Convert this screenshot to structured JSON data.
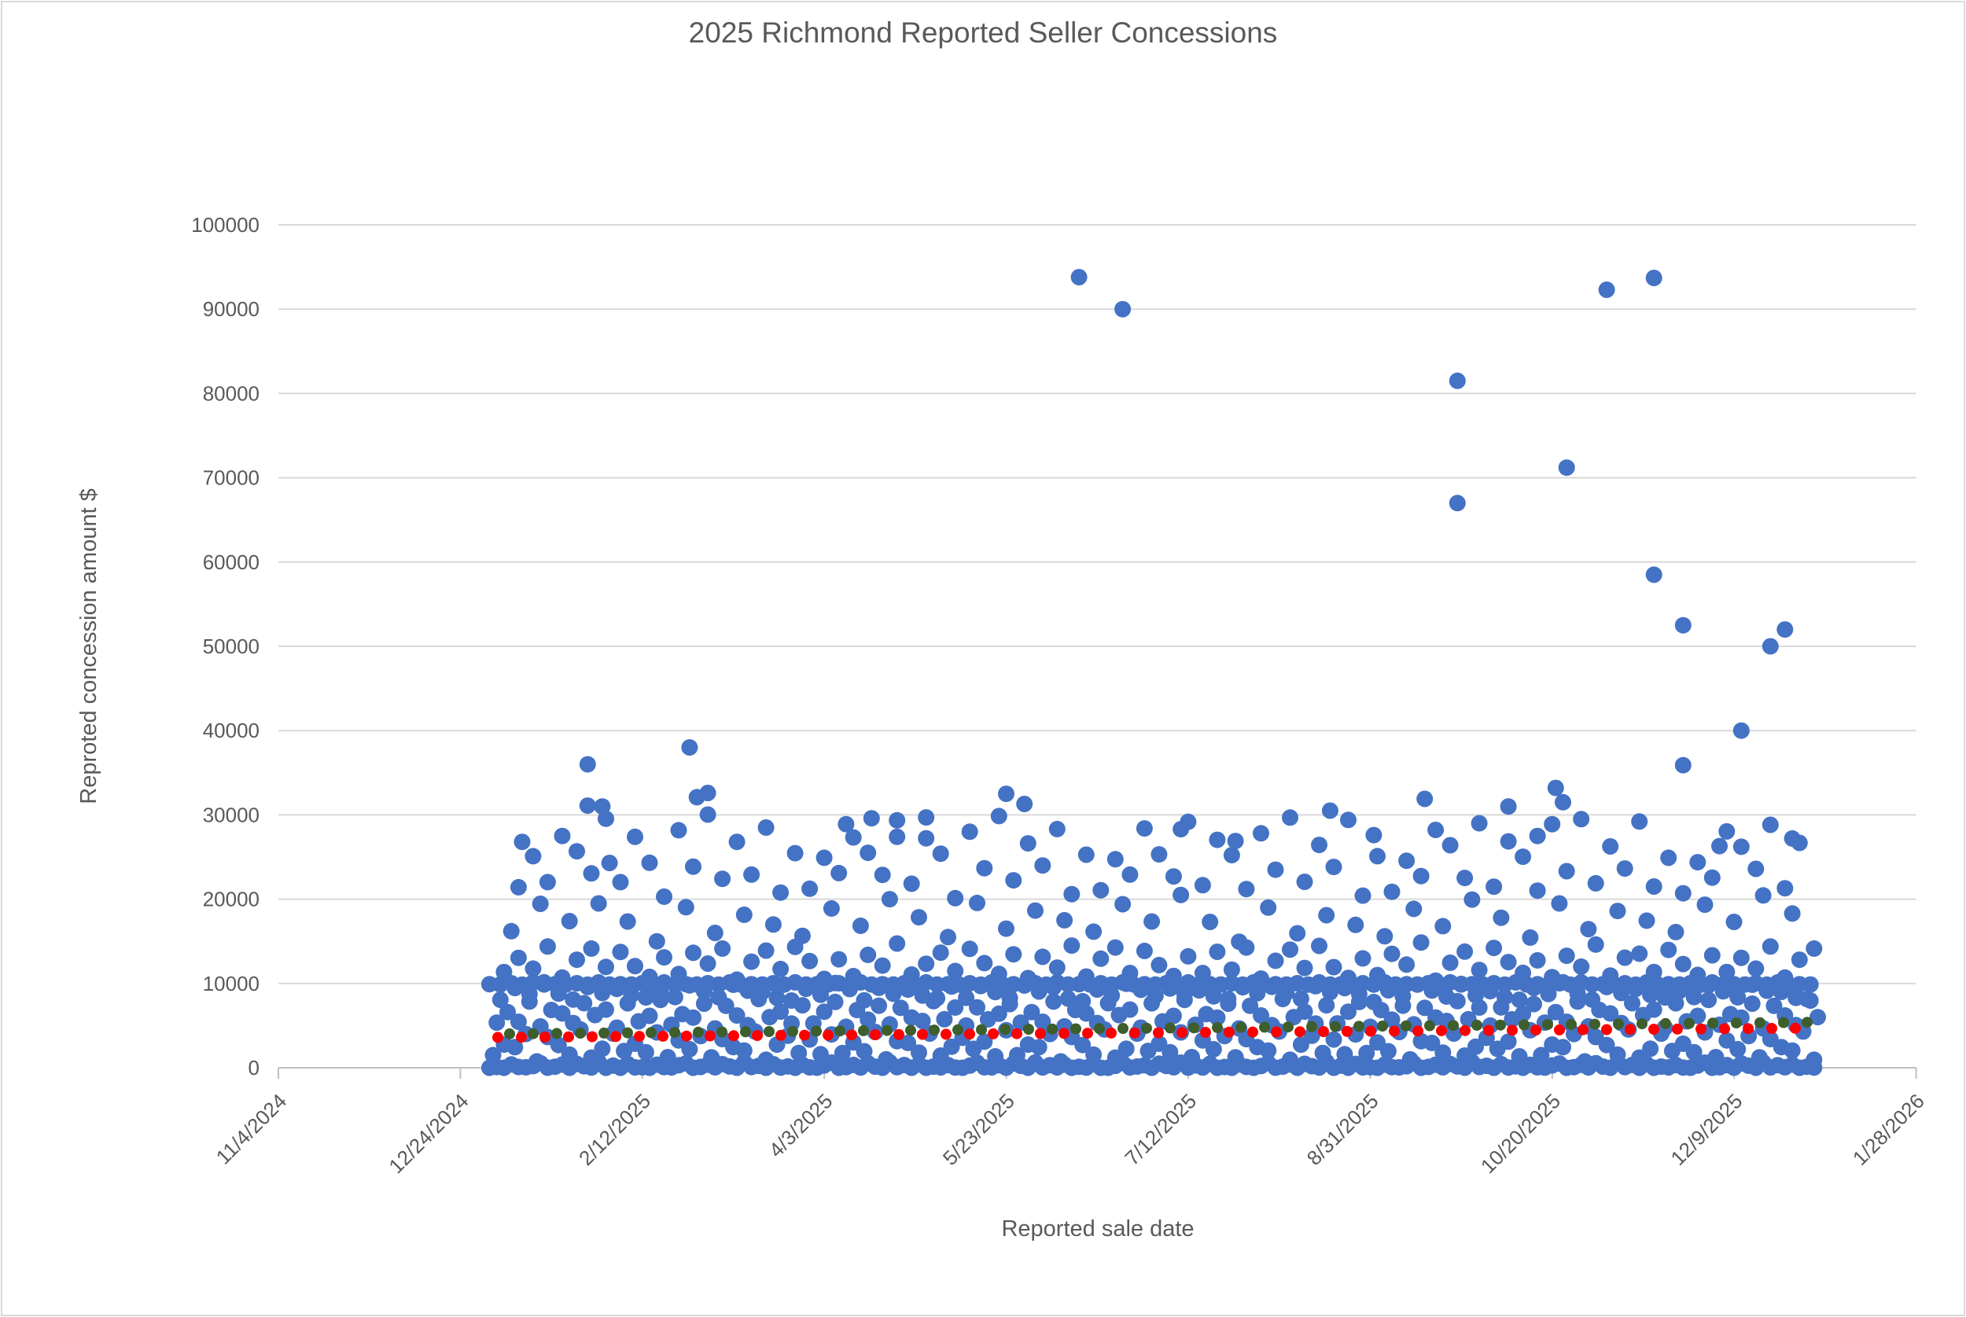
{
  "chart_data": {
    "type": "scatter",
    "title": "2025 Richmond Reported Seller Concessions",
    "xlabel": "Reported sale date",
    "ylabel": "Reproted concession amount $",
    "x_tick_labels": [
      "11/4/2024",
      "12/24/2024",
      "2/12/2025",
      "4/3/2025",
      "5/23/2025",
      "7/12/2025",
      "8/31/2025",
      "10/20/2025",
      "12/9/2025",
      "1/28/2026"
    ],
    "x_tick_interval_days": 50,
    "y_ticks": [
      0,
      10000,
      20000,
      30000,
      40000,
      50000,
      60000,
      70000,
      80000,
      90000,
      100000
    ],
    "ylim": [
      0,
      100000
    ],
    "grid": true,
    "legend": false,
    "date_origin": "1/1/2025",
    "series_color": "#4472C4",
    "marker_radius": 10.5,
    "dense_bands": [
      {
        "name": "zero-band",
        "start_day": 0,
        "end_day": 364,
        "step_days": 2,
        "jitter": 60,
        "values": [
          0,
          120,
          0,
          380,
          60,
          0,
          240,
          560,
          0,
          90,
          330,
          0,
          480,
          180,
          0,
          650,
          40,
          280,
          0,
          430
        ]
      },
      {
        "name": "low-band",
        "start_day": 1,
        "end_day": 364,
        "step_days": 3,
        "jitter": 350,
        "values": [
          1500,
          3000,
          2200,
          4000,
          1000,
          3400,
          2700,
          1800,
          4300,
          1200,
          2500,
          3800,
          2000,
          3100,
          1600,
          4200
        ]
      },
      {
        "name": "mid-band",
        "start_day": 2,
        "end_day": 365,
        "step_days": 3,
        "jitter": 350,
        "values": [
          5000,
          6500,
          5600,
          7500,
          4800,
          7000,
          6100,
          5200,
          7800,
          5900,
          6800,
          4900,
          7300,
          5400,
          6300,
          7700
        ]
      },
      {
        "name": "high-band",
        "start_day": 3,
        "end_day": 363,
        "step_days": 4,
        "jitter": 300,
        "values": [
          8100,
          9400,
          8600,
          9900,
          9100,
          8300,
          9700,
          8900,
          9300,
          8500
        ]
      },
      {
        "name": "ten-k-row",
        "start_day": 0,
        "end_day": 364,
        "step_days": 3,
        "jitter": 80,
        "values": [
          10000,
          9850,
          10050,
          9950,
          10100,
          9900
        ]
      },
      {
        "name": "teens-band",
        "start_day": 4,
        "end_day": 364,
        "step_days": 4,
        "jitter": 400,
        "values": [
          11000,
          13400,
          12000,
          14500,
          10700,
          12700,
          13900,
          11600,
          14100,
          12300,
          10900,
          13100
        ]
      },
      {
        "name": "upper-teens-band",
        "start_day": 6,
        "end_day": 362,
        "step_days": 8,
        "jitter": 500,
        "values": [
          15800,
          19000,
          16900,
          20000,
          17800,
          15400,
          19400,
          16300,
          18400,
          17200
        ]
      },
      {
        "name": "twenties-band",
        "start_day": 8,
        "end_day": 360,
        "step_days": 4,
        "jitter": 600,
        "values": [
          21000,
          24500,
          22500,
          27800,
          25800,
          23000,
          29300,
          21600,
          26800,
          24800,
          20600,
          28300,
          23800,
          29800,
          22000,
          26200,
          23400,
          28800,
          20900,
          25400
        ]
      }
    ],
    "outlier_points": [
      [
        9,
        26800
      ],
      [
        27,
        36000
      ],
      [
        27,
        31100
      ],
      [
        31,
        31000
      ],
      [
        33,
        24300
      ],
      [
        55,
        38000
      ],
      [
        57,
        32100
      ],
      [
        60,
        32600
      ],
      [
        98,
        28900
      ],
      [
        105,
        29600
      ],
      [
        112,
        27400
      ],
      [
        120,
        29700
      ],
      [
        142,
        32500
      ],
      [
        147,
        31300
      ],
      [
        162,
        93800
      ],
      [
        174,
        90000
      ],
      [
        190,
        28300
      ],
      [
        205,
        26900
      ],
      [
        231,
        30500
      ],
      [
        243,
        27600
      ],
      [
        257,
        31900
      ],
      [
        266,
        81500
      ],
      [
        266,
        67000
      ],
      [
        280,
        31000
      ],
      [
        288,
        27500
      ],
      [
        293,
        33200
      ],
      [
        295,
        31500
      ],
      [
        296,
        71200
      ],
      [
        307,
        92300
      ],
      [
        320,
        93700
      ],
      [
        320,
        58500
      ],
      [
        328,
        52500
      ],
      [
        328,
        35900
      ],
      [
        338,
        26300
      ],
      [
        344,
        40000
      ],
      [
        352,
        50000
      ],
      [
        356,
        52000
      ],
      [
        358,
        27200
      ]
    ],
    "trendlines": [
      {
        "name": "linear-trend",
        "color": "#FF0000",
        "style": "dotted",
        "start_value": 3600,
        "end_value": 4700
      },
      {
        "name": "moving-average-trend",
        "color": "#3E5E2B",
        "style": "dotted",
        "start_value": 4000,
        "end_value": 5400
      }
    ]
  },
  "colors": {
    "point": "#4472C4",
    "gridline": "#D9D9D9",
    "axis_line": "#BFBFBF",
    "text": "#595959",
    "chart_border": "#D9D9D9",
    "background": "#FFFFFF"
  }
}
